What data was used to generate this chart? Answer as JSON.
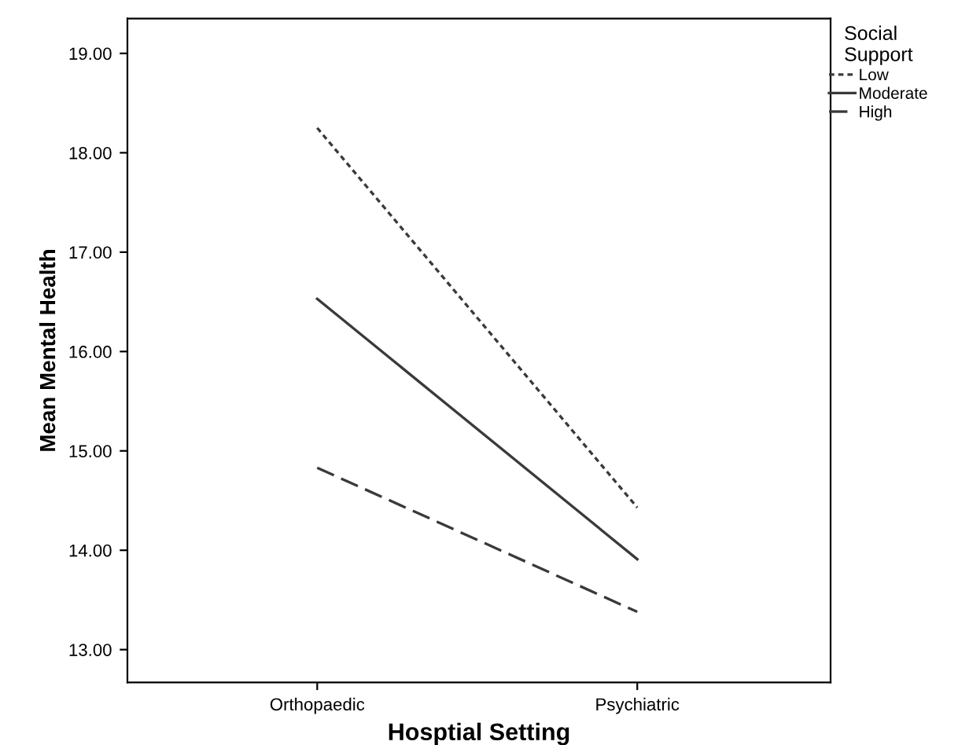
{
  "chart_data": {
    "type": "line",
    "xlabel": "Hosptial Setting",
    "ylabel": "Mean Mental Health",
    "legend_title": "Social\nSupport",
    "legend": "top right",
    "categories": [
      "Orthopaedic",
      "Psychiatric"
    ],
    "ylim": [
      12.67,
      19.35
    ],
    "yticks": [
      {
        "value": 13,
        "label": "13.00"
      },
      {
        "value": 14,
        "label": "14.00"
      },
      {
        "value": 15,
        "label": "15.00"
      },
      {
        "value": 16,
        "label": "16.00"
      },
      {
        "value": 17,
        "label": "17.00"
      },
      {
        "value": 18,
        "label": "18.00"
      },
      {
        "value": 19,
        "label": "19.00"
      }
    ],
    "grid": false,
    "marker": "none",
    "series": [
      {
        "name": "Low",
        "color": "#3a3a3a",
        "line_style": "dotted",
        "values": [
          18.25,
          14.43
        ]
      },
      {
        "name": "Moderate",
        "color": "#3a3a3a",
        "line_style": "solid",
        "values": [
          16.53,
          13.91
        ]
      },
      {
        "name": "High",
        "color": "#3a3a3a",
        "line_style": "dashed",
        "values": [
          14.83,
          13.38
        ]
      }
    ]
  }
}
